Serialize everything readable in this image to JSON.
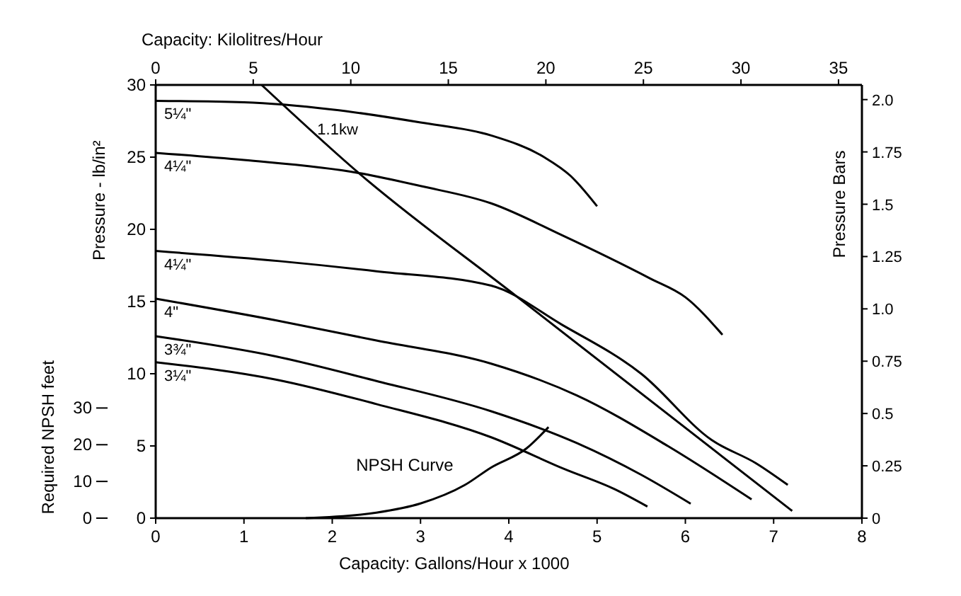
{
  "chart_data": {
    "type": "line",
    "xlabel": "Capacity: Gallons/Hour x 1000",
    "x2label": "Capacity: Kilolitres/Hour",
    "ylabel": "Pressure - lb/in²",
    "y2label": "Pressure Bars",
    "y3label": "Required NPSH feet",
    "xlim": [
      0,
      8
    ],
    "xticks": [
      0,
      1,
      2,
      3,
      4,
      5,
      6,
      7,
      8
    ],
    "x2lim": [
      0,
      36.2
    ],
    "x2ticks": [
      0,
      5,
      10,
      15,
      20,
      25,
      30,
      35
    ],
    "ylim": [
      0,
      30
    ],
    "yticks": [
      0,
      5,
      10,
      15,
      20,
      25,
      30
    ],
    "y2lim": [
      0,
      2.07
    ],
    "y2ticks": [
      0,
      0.25,
      0.5,
      0.75,
      {
        "value": 1,
        "label": "1.0"
      },
      1.25,
      1.5,
      1.75,
      {
        "value": 2,
        "label": "2.0"
      }
    ],
    "y3lim": [
      0,
      118
    ],
    "y3ticks": [
      0,
      10,
      20,
      30
    ],
    "grid": false,
    "marker": "none",
    "line_style": "solid",
    "series": [
      {
        "name": "5¼\"",
        "color": "#000000",
        "x": [
          0,
          1,
          2,
          3,
          3.8,
          4.4,
          4.7,
          5.0
        ],
        "values": [
          28.9,
          28.8,
          28.3,
          27.4,
          26.5,
          25,
          23.7,
          21.6
        ]
      },
      {
        "name": "4¼\"",
        "color": "#000000",
        "x": [
          0,
          1,
          2.3,
          3,
          3.8,
          4.6,
          5.6,
          6.0,
          6.42
        ],
        "values": [
          25.3,
          24.8,
          23.9,
          23,
          21.8,
          19.6,
          16.6,
          15.3,
          12.7
        ]
      },
      {
        "name": "4¼\"",
        "color": "#000000",
        "x": [
          0,
          1.4,
          2.5,
          3.8,
          4.6,
          5.5,
          6.3,
          6.8,
          7.16
        ],
        "values": [
          18.5,
          17.8,
          17.1,
          16.1,
          13.4,
          10,
          5.4,
          3.8,
          2.3
        ]
      },
      {
        "name": "4\"",
        "color": "#000000",
        "x": [
          0,
          1.36,
          2.5,
          3.8,
          4.77,
          5.8,
          6.75
        ],
        "values": [
          15.2,
          13.7,
          12.3,
          10.7,
          8.5,
          5,
          1.3
        ]
      },
      {
        "name": "3¾\"",
        "color": "#000000",
        "x": [
          0,
          1.36,
          2.5,
          3.8,
          4.77,
          5.5,
          6.06
        ],
        "values": [
          12.6,
          11.2,
          9.5,
          7.4,
          5.2,
          3,
          1
        ]
      },
      {
        "name": "3¼\"",
        "color": "#000000",
        "x": [
          0,
          1.36,
          2.5,
          3.8,
          4.63,
          5.2,
          5.57
        ],
        "values": [
          10.8,
          9.6,
          7.9,
          5.6,
          3.4,
          2,
          0.8
        ]
      },
      {
        "name": "1.1kw",
        "color": "#000000",
        "x": [
          1.2,
          2.3,
          4.1,
          7.21
        ],
        "values": [
          30,
          23.9,
          15.3,
          0.5
        ]
      },
      {
        "name": "NPSH Curve",
        "color": "#000000",
        "axis": "y3",
        "x": [
          1.7,
          2.5,
          3.0,
          3.5,
          3.8,
          4.2,
          4.45
        ],
        "values": [
          0,
          1.5,
          4,
          9,
          13.8,
          19,
          24.8
        ]
      }
    ]
  }
}
